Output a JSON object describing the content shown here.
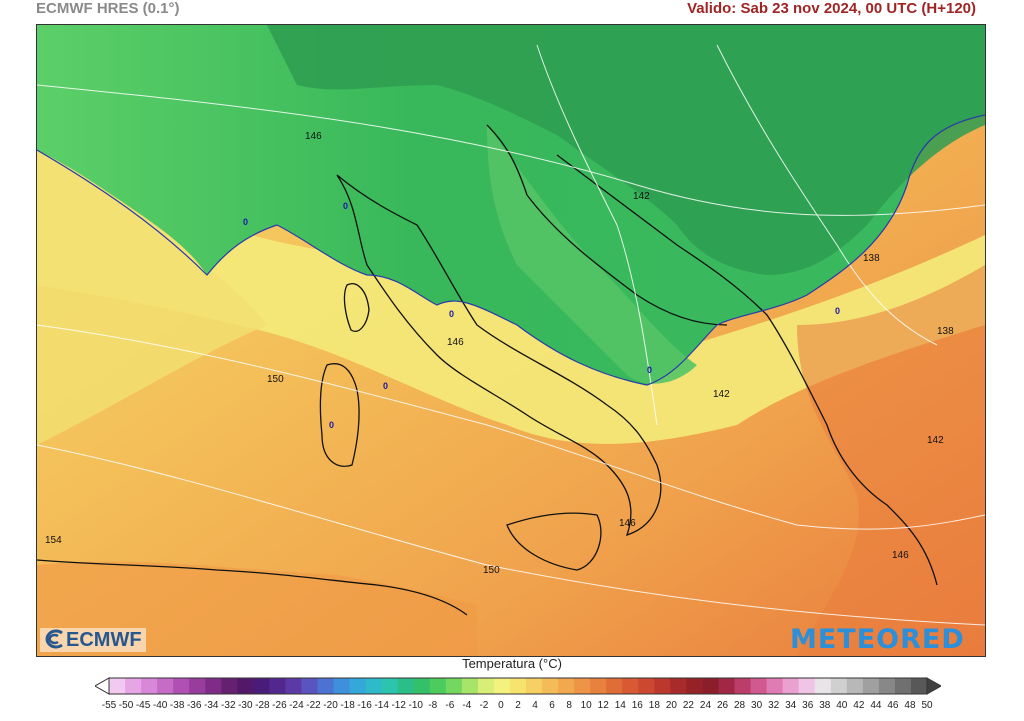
{
  "header": {
    "model": "ECMWF HRES (0.1°)",
    "valid": "Valido: Sab 23 nov 2024, 00 UTC (H+120)"
  },
  "map": {
    "contour_labels": [
      "146",
      "142",
      "138",
      "146",
      "150",
      "142",
      "138",
      "142",
      "154",
      "146",
      "150",
      "146"
    ],
    "zero_labels": [
      "0",
      "0",
      "0",
      "0",
      "0",
      "0",
      "0"
    ]
  },
  "logos": {
    "left": "ECMWF",
    "right": "METEORED"
  },
  "legend": {
    "title": "Temperatura (°C)",
    "ticks": [
      "-55",
      "-50",
      "-45",
      "-40",
      "-38",
      "-36",
      "-34",
      "-32",
      "-30",
      "-28",
      "-26",
      "-24",
      "-22",
      "-20",
      "-18",
      "-16",
      "-14",
      "-12",
      "-10",
      "-8",
      "-6",
      "-4",
      "-2",
      "0",
      "2",
      "4",
      "6",
      "8",
      "10",
      "12",
      "14",
      "16",
      "18",
      "20",
      "22",
      "24",
      "26",
      "28",
      "30",
      "32",
      "34",
      "36",
      "38",
      "40",
      "42",
      "44",
      "46",
      "48",
      "50"
    ],
    "colors": [
      "#ffffff",
      "#f2c9f0",
      "#e6a6e6",
      "#d888d8",
      "#c66cc6",
      "#b050b4",
      "#983c9e",
      "#7e2c88",
      "#662070",
      "#54186a",
      "#4a1c7a",
      "#52288e",
      "#5c3aa6",
      "#5a54c0",
      "#4c72d4",
      "#3e90dc",
      "#34a8d8",
      "#2ebac8",
      "#2cc4ac",
      "#2cbe88",
      "#34c068",
      "#4ccc5c",
      "#74d860",
      "#a6e46a",
      "#d8ee76",
      "#f4f27e",
      "#f6e46e",
      "#f6d062",
      "#f4bc58",
      "#f2a84e",
      "#ee9446",
      "#e8803e",
      "#e06c38",
      "#d85a34",
      "#cc4830",
      "#bc382c",
      "#a82a2a",
      "#962228",
      "#8c1e2c",
      "#a02846",
      "#bc3c6a",
      "#d05a90",
      "#e07cb4",
      "#eaa0d0",
      "#f0c4e4",
      "#e8e4e8",
      "#d0d0d0",
      "#b8b8b8",
      "#a0a0a0",
      "#888888",
      "#707070",
      "#585858",
      "#404040"
    ]
  }
}
